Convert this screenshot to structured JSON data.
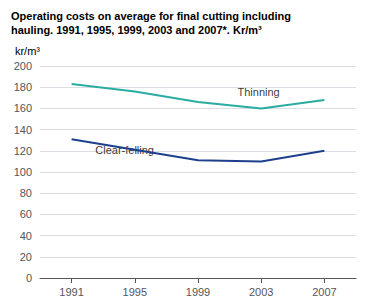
{
  "chart_data": {
    "type": "line",
    "title": "Operating costs on average for final cutting including\nhauling. 1991, 1995, 1999, 2003 and 2007*. Kr/m³",
    "y_label": "kr/m³",
    "x": [
      1991,
      1995,
      1999,
      2003,
      2007
    ],
    "series": [
      {
        "name": "Thinning",
        "color": "#2aaca0",
        "values": [
          183,
          176,
          166,
          160,
          168
        ]
      },
      {
        "name": "Clear-felling",
        "color": "#1e3f8c",
        "values": [
          131,
          121,
          111,
          110,
          120
        ]
      }
    ],
    "annotations": [
      {
        "text": "Thinning",
        "x": 2001.5,
        "y": 170
      },
      {
        "text": "Clear-felling",
        "x": 1992.5,
        "y": 116
      }
    ],
    "xlim": [
      1989.0,
      2009.0
    ],
    "xticks": [
      1991,
      1995,
      1999,
      2003,
      2007
    ],
    "ylim": [
      0,
      200
    ],
    "yticks": [
      0,
      20,
      40,
      60,
      80,
      100,
      120,
      140,
      160,
      180,
      200
    ],
    "grid": true
  }
}
